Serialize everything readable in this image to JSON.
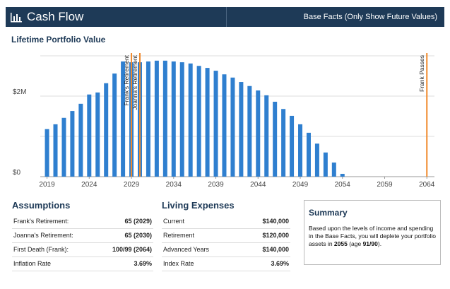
{
  "header": {
    "title": "Cash Flow",
    "view": "Base Facts (Only Show Future Values)"
  },
  "chart_data": {
    "type": "bar",
    "title": "Lifetime Portfolio Value",
    "x": [
      2019,
      2020,
      2021,
      2022,
      2023,
      2024,
      2025,
      2026,
      2027,
      2028,
      2029,
      2030,
      2031,
      2032,
      2033,
      2034,
      2035,
      2036,
      2037,
      2038,
      2039,
      2040,
      2041,
      2042,
      2043,
      2044,
      2045,
      2046,
      2047,
      2048,
      2049,
      2050,
      2051,
      2052,
      2053,
      2054
    ],
    "values": [
      1180000,
      1300000,
      1460000,
      1630000,
      1810000,
      2040000,
      2090000,
      2320000,
      2560000,
      2860000,
      2840000,
      2840000,
      2860000,
      2880000,
      2880000,
      2860000,
      2840000,
      2810000,
      2750000,
      2700000,
      2630000,
      2540000,
      2460000,
      2350000,
      2250000,
      2140000,
      2020000,
      1860000,
      1680000,
      1510000,
      1300000,
      1090000,
      820000,
      600000,
      350000,
      70000
    ],
    "color": "#2f7fcf",
    "xlim": [
      2018.2,
      2064.9
    ],
    "xticks": [
      2019,
      2024,
      2029,
      2034,
      2039,
      2044,
      2049,
      2054,
      2059,
      2064
    ],
    "ylim": [
      0,
      3000000
    ],
    "yticks": [
      {
        "value": 0,
        "label": "$0"
      },
      {
        "value": 2000000,
        "label": "$2M"
      }
    ],
    "minor_gridlines": [
      1000000,
      3000000
    ],
    "annotations": [
      {
        "text": "Frank's Retirement",
        "x": 2029
      },
      {
        "text": "Joanna's Retirement",
        "x": 2030
      },
      {
        "text": "Frank Passes",
        "x": 2064
      }
    ],
    "annotation_color": "#f08a2c"
  },
  "assumptions": {
    "title": "Assumptions",
    "rows": [
      [
        "Frank's Retirement:",
        "65 (2029)"
      ],
      [
        "Joanna's Retirement:",
        "65 (2030)"
      ],
      [
        "First Death (Frank):",
        "100/99 (2064)"
      ],
      [
        "Inflation Rate",
        "3.69%"
      ]
    ]
  },
  "expenses": {
    "title": "Living Expenses",
    "rows": [
      [
        "Current",
        "$140,000"
      ],
      [
        "Retirement",
        "$120,000"
      ],
      [
        "Advanced Years",
        "$140,000"
      ],
      [
        "Index Rate",
        "3.69%"
      ]
    ]
  },
  "summary": {
    "title": "Summary",
    "parts": [
      "Based upon the levels of income and spending in the Base Facts, you will deplete your portfolio assets in ",
      "2055",
      " (age ",
      "91/90",
      ")."
    ]
  }
}
